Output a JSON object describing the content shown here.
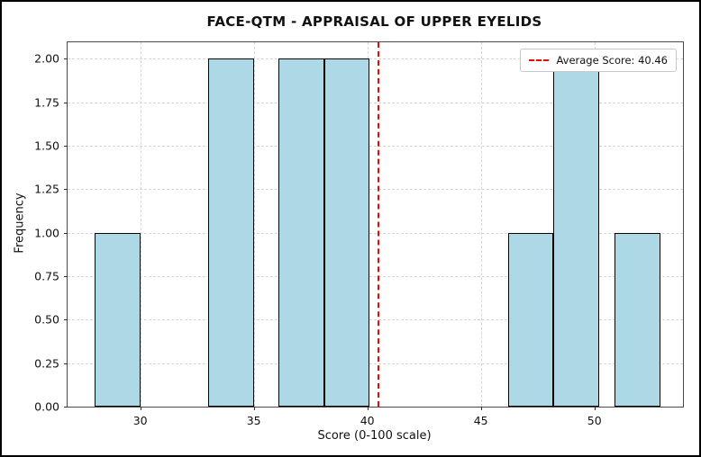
{
  "chart_data": {
    "type": "bar",
    "subtype": "histogram",
    "title": "FACE-QTM - APPRAISAL OF UPPER EYELIDS",
    "xlabel": "Score (0-100 scale)",
    "ylabel": "Frequency",
    "xlim": [
      26.8,
      53.9
    ],
    "ylim": [
      0,
      2.095
    ],
    "grid": true,
    "legend_position": "upper right",
    "bar_fill_color": "#add8e6",
    "bar_edge_color": "#000000",
    "grid_color": "#d6d6d6",
    "xticks": [
      {
        "v": 30,
        "label": "30"
      },
      {
        "v": 35,
        "label": "35"
      },
      {
        "v": 40,
        "label": "40"
      },
      {
        "v": 45,
        "label": "45"
      },
      {
        "v": 50,
        "label": "50"
      }
    ],
    "yticks": [
      {
        "v": 0.0,
        "label": "0.00"
      },
      {
        "v": 0.25,
        "label": "0.25"
      },
      {
        "v": 0.5,
        "label": "0.50"
      },
      {
        "v": 0.75,
        "label": "0.75"
      },
      {
        "v": 1.0,
        "label": "1.00"
      },
      {
        "v": 1.25,
        "label": "1.25"
      },
      {
        "v": 1.5,
        "label": "1.50"
      },
      {
        "v": 1.75,
        "label": "1.75"
      },
      {
        "v": 2.0,
        "label": "2.00"
      }
    ],
    "bars": [
      {
        "x0": 28.0,
        "x1": 30.0,
        "count": 1
      },
      {
        "x0": 33.0,
        "x1": 35.0,
        "count": 2
      },
      {
        "x0": 36.1,
        "x1": 38.1,
        "count": 2
      },
      {
        "x0": 38.1,
        "x1": 40.1,
        "count": 2
      },
      {
        "x0": 46.2,
        "x1": 48.2,
        "count": 1
      },
      {
        "x0": 48.2,
        "x1": 50.2,
        "count": 2
      },
      {
        "x0": 50.9,
        "x1": 52.9,
        "count": 1
      }
    ],
    "average_line": {
      "value": 40.46,
      "label": "Average Score: 40.46",
      "color": "#ff0000",
      "style": "dashed"
    }
  }
}
